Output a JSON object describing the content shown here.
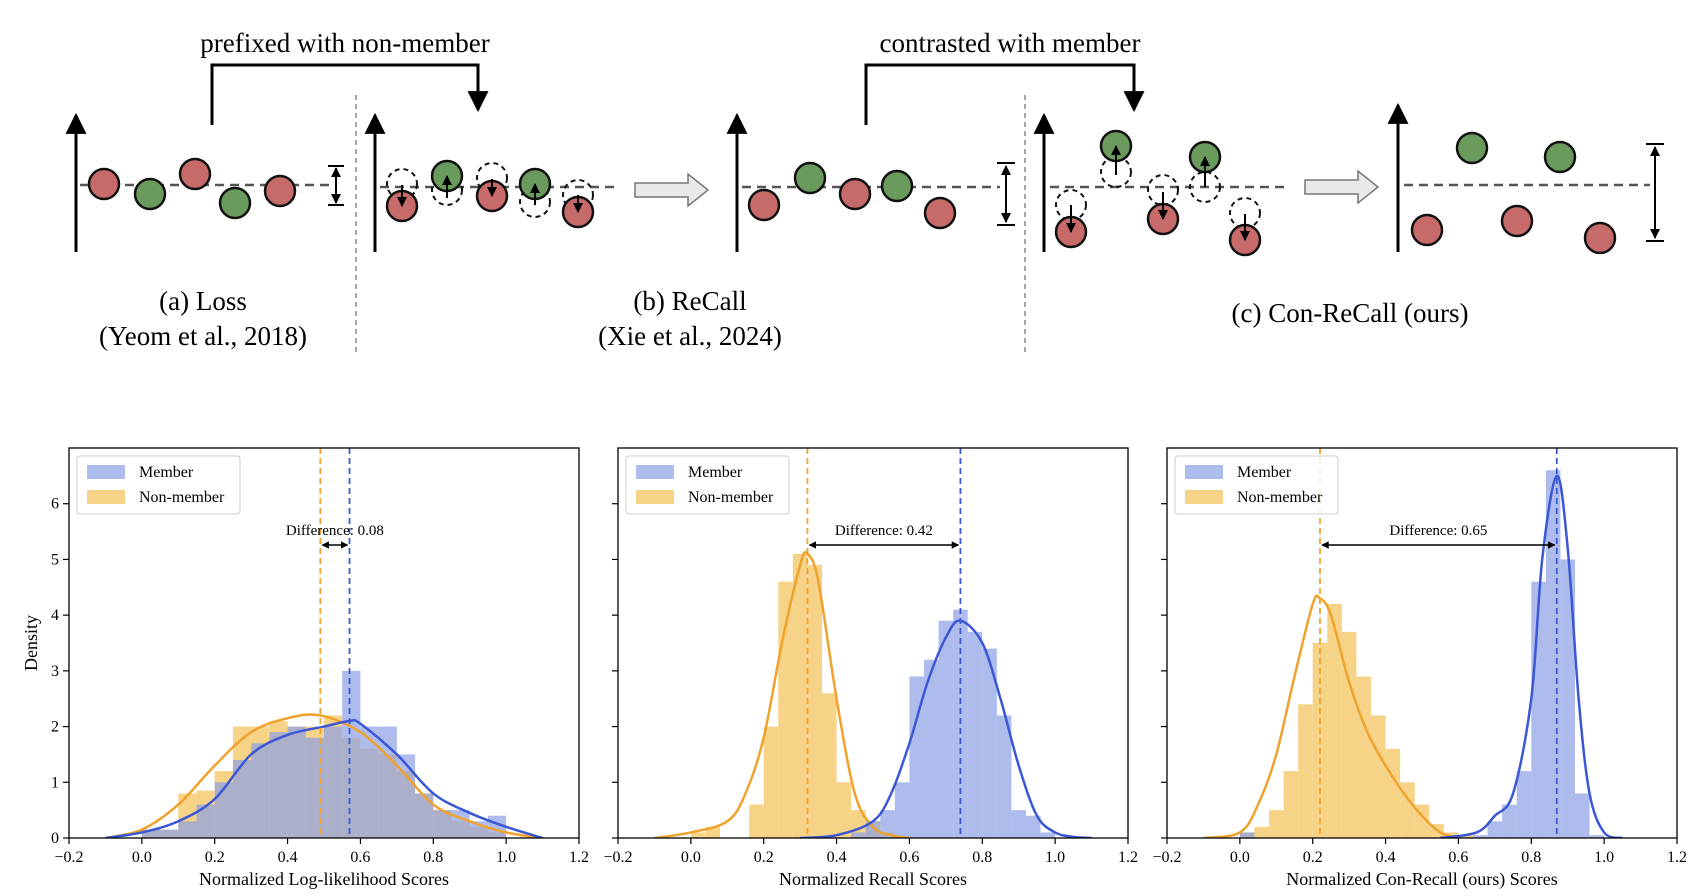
{
  "top": {
    "arrow_label_1": "prefixed with non-member",
    "arrow_label_2": "contrasted with member",
    "panels": [
      {
        "caption1": "(a) Loss",
        "caption2": "(Yeom et al., 2018)"
      },
      {
        "caption1": "(b) ReCall",
        "caption2": "(Xie et al., 2024)"
      },
      {
        "caption1": "(c) Con-ReCall (ours)",
        "caption2": ""
      }
    ],
    "colors": {
      "member": "#6a9a5c",
      "nonmember": "#c76a6a",
      "arrow_fill": "#e9e9e9"
    }
  },
  "chart_data": [
    {
      "type": "histogram+kde",
      "xlabel": "Normalized Log-likelihood Scores",
      "ylabel": "Density",
      "xlim": [
        -0.2,
        1.2
      ],
      "ylim": [
        0,
        7
      ],
      "xticks": [
        -0.2,
        0.0,
        0.2,
        0.4,
        0.6,
        0.8,
        1.0,
        1.2
      ],
      "yticks": [
        0,
        1,
        2,
        3,
        4,
        5,
        6
      ],
      "legend": [
        "Member",
        "Non-member"
      ],
      "legend_position": "top-left",
      "annotation": "Difference: 0.08",
      "member_mean": 0.57,
      "nonmember_mean": 0.49,
      "bin_edges": [
        0.0,
        0.05,
        0.1,
        0.15,
        0.2,
        0.25,
        0.3,
        0.35,
        0.4,
        0.45,
        0.5,
        0.55,
        0.6,
        0.65,
        0.7,
        0.75,
        0.8,
        0.85,
        0.9,
        0.95,
        1.0
      ],
      "member_hist": [
        0.15,
        0.15,
        0.3,
        0.6,
        1.0,
        1.4,
        1.7,
        1.9,
        2.0,
        1.8,
        2.0,
        3.0,
        2.0,
        2.0,
        1.5,
        0.8,
        0.5,
        0.5,
        0.3,
        0.4
      ],
      "nonmember_hist": [
        0.15,
        0.15,
        0.8,
        0.85,
        1.2,
        2.0,
        2.0,
        2.1,
        2.0,
        2.0,
        2.2,
        1.8,
        1.6,
        1.5,
        1.2,
        0.8,
        0.5,
        0.3,
        0.2,
        0.1
      ],
      "member_kde_x": [
        -0.1,
        0.0,
        0.1,
        0.2,
        0.3,
        0.4,
        0.5,
        0.57,
        0.6,
        0.7,
        0.8,
        0.9,
        1.0,
        1.1
      ],
      "member_kde_y": [
        0.0,
        0.1,
        0.3,
        0.7,
        1.5,
        1.85,
        2.0,
        2.1,
        2.05,
        1.5,
        0.8,
        0.45,
        0.2,
        0.0
      ],
      "nonmember_kde_x": [
        -0.1,
        0.0,
        0.1,
        0.2,
        0.3,
        0.4,
        0.49,
        0.6,
        0.7,
        0.8,
        0.9,
        1.0,
        1.1
      ],
      "nonmember_kde_y": [
        0.0,
        0.15,
        0.6,
        1.3,
        1.9,
        2.15,
        2.2,
        1.9,
        1.3,
        0.6,
        0.3,
        0.1,
        0.0
      ]
    },
    {
      "type": "histogram+kde",
      "xlabel": "Normalized Recall Scores",
      "ylabel": "",
      "xlim": [
        -0.2,
        1.2
      ],
      "ylim": [
        0,
        7
      ],
      "xticks": [
        -0.2,
        0.0,
        0.2,
        0.4,
        0.6,
        0.8,
        1.0,
        1.2
      ],
      "yticks": [],
      "legend": [
        "Member",
        "Non-member"
      ],
      "legend_position": "top-left",
      "annotation": "Difference: 0.42",
      "member_mean": 0.74,
      "nonmember_mean": 0.32,
      "bin_edges": [
        0.0,
        0.04,
        0.08,
        0.12,
        0.16,
        0.2,
        0.24,
        0.28,
        0.32,
        0.36,
        0.4,
        0.44,
        0.48,
        0.52,
        0.56,
        0.6,
        0.64,
        0.68,
        0.72,
        0.76,
        0.8,
        0.84,
        0.88,
        0.92,
        0.96,
        1.0
      ],
      "member_hist": [
        0,
        0,
        0,
        0,
        0,
        0,
        0,
        0,
        0,
        0,
        0,
        0.1,
        0.3,
        0.5,
        1.0,
        2.9,
        3.2,
        3.9,
        4.1,
        3.7,
        3.4,
        2.2,
        0.5,
        0.4,
        0.1
      ],
      "nonmember_hist": [
        0.1,
        0.2,
        0,
        0,
        0.6,
        2.0,
        4.6,
        5.1,
        4.9,
        2.6,
        1.0,
        0.5,
        0.3,
        0.1,
        0,
        0,
        0,
        0,
        0,
        0,
        0,
        0,
        0,
        0,
        0
      ],
      "member_kde_x": [
        0.3,
        0.4,
        0.5,
        0.55,
        0.6,
        0.65,
        0.7,
        0.74,
        0.8,
        0.85,
        0.9,
        0.95,
        1.0,
        1.05,
        1.1
      ],
      "member_kde_y": [
        0.0,
        0.05,
        0.3,
        0.8,
        1.7,
        2.8,
        3.6,
        3.9,
        3.5,
        2.5,
        1.3,
        0.4,
        0.1,
        0.02,
        0.0
      ],
      "nonmember_kde_x": [
        -0.1,
        0.0,
        0.1,
        0.15,
        0.2,
        0.25,
        0.3,
        0.32,
        0.35,
        0.4,
        0.45,
        0.5,
        0.55,
        0.6
      ],
      "nonmember_kde_y": [
        0.0,
        0.1,
        0.3,
        0.8,
        1.8,
        3.5,
        4.9,
        5.1,
        4.6,
        2.5,
        0.8,
        0.2,
        0.05,
        0.0
      ]
    },
    {
      "type": "histogram+kde",
      "xlabel": "Normalized Con-Recall (ours) Scores",
      "ylabel": "",
      "xlim": [
        -0.2,
        1.2
      ],
      "ylim": [
        0,
        7
      ],
      "xticks": [
        -0.2,
        0.0,
        0.2,
        0.4,
        0.6,
        0.8,
        1.0,
        1.2
      ],
      "yticks": [],
      "legend": [
        "Member",
        "Non-member"
      ],
      "legend_position": "top-left",
      "annotation": "Difference: 0.65",
      "member_mean": 0.87,
      "nonmember_mean": 0.22,
      "bin_edges": [
        0.0,
        0.04,
        0.08,
        0.12,
        0.16,
        0.2,
        0.24,
        0.28,
        0.32,
        0.36,
        0.4,
        0.44,
        0.48,
        0.52,
        0.56,
        0.6,
        0.64,
        0.68,
        0.72,
        0.76,
        0.8,
        0.84,
        0.88,
        0.92,
        0.96,
        1.0
      ],
      "member_hist": [
        0.1,
        0,
        0,
        0,
        0,
        0,
        0,
        0,
        0,
        0,
        0,
        0,
        0,
        0,
        0,
        0,
        0.05,
        0.3,
        0.6,
        1.2,
        4.6,
        6.6,
        5.0,
        0.8,
        0.05
      ],
      "nonmember_hist": [
        0.1,
        0.2,
        0.5,
        1.2,
        2.4,
        3.5,
        4.2,
        3.7,
        2.9,
        2.2,
        1.6,
        1.0,
        0.6,
        0.25,
        0.1,
        0.05,
        0,
        0,
        0,
        0,
        0,
        0,
        0,
        0,
        0
      ],
      "member_kde_x": [
        0.55,
        0.65,
        0.7,
        0.75,
        0.8,
        0.83,
        0.87,
        0.9,
        0.93,
        0.96,
        1.0,
        1.05
      ],
      "member_kde_y": [
        0.0,
        0.1,
        0.4,
        0.8,
        2.5,
        5.0,
        6.5,
        5.2,
        2.5,
        0.8,
        0.1,
        0.0
      ],
      "nonmember_kde_x": [
        -0.1,
        0.0,
        0.05,
        0.1,
        0.15,
        0.2,
        0.22,
        0.25,
        0.3,
        0.35,
        0.4,
        0.45,
        0.5,
        0.55,
        0.6
      ],
      "nonmember_kde_y": [
        0.0,
        0.1,
        0.6,
        1.5,
        2.9,
        4.2,
        4.3,
        4.0,
        2.8,
        1.9,
        1.3,
        0.8,
        0.4,
        0.1,
        0.0
      ]
    }
  ]
}
